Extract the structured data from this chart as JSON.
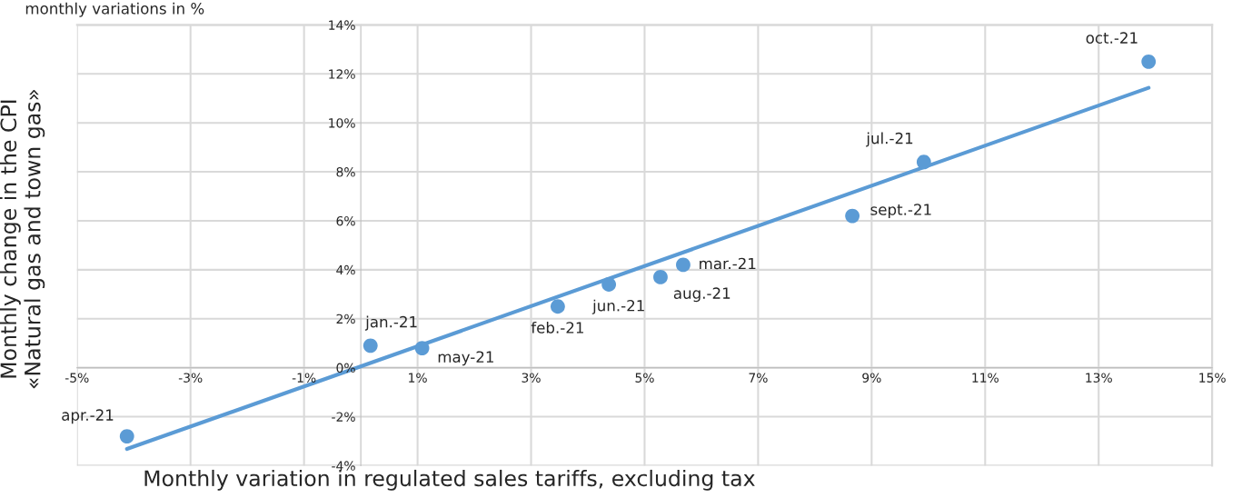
{
  "chart_data": {
    "type": "scatter",
    "subtitle": "monthly variations in %",
    "xlabel": "Monthly variation in regulated sales tariffs, excluding tax",
    "ylabel": "Monthly change in the CPI\n«Natural gas and town gas»",
    "series": [
      {
        "color": "#5b9bd5",
        "marker": "circle",
        "x": [
          0.17,
          3.47,
          5.68,
          -4.12,
          1.08,
          4.37,
          9.92,
          5.28,
          8.66,
          13.88
        ],
        "values": [
          0.9,
          2.5,
          4.2,
          -2.8,
          0.8,
          3.4,
          8.4,
          3.7,
          6.2,
          12.5
        ]
      },
      {
        "type": "line",
        "color": "#5b9bd5",
        "line_style": "solid",
        "x": [
          -4.12,
          13.88
        ],
        "values": [
          -3.32,
          11.43
        ]
      }
    ],
    "annotations": [
      {
        "text": "jan.-21",
        "x": 0.17,
        "y": 0.9
      },
      {
        "text": "feb.-21",
        "x": 3.47,
        "y": 2.5
      },
      {
        "text": "mar.-21",
        "x": 5.68,
        "y": 4.2
      },
      {
        "text": "apr.-21",
        "x": -4.12,
        "y": -2.8
      },
      {
        "text": "may-21",
        "x": 1.08,
        "y": 0.8
      },
      {
        "text": "jun.-21",
        "x": 4.37,
        "y": 3.4
      },
      {
        "text": "jul.-21",
        "x": 9.92,
        "y": 8.4
      },
      {
        "text": "aug.-21",
        "x": 5.28,
        "y": 3.7
      },
      {
        "text": "sept.-21",
        "x": 8.66,
        "y": 6.2
      },
      {
        "text": "oct.-21",
        "x": 13.88,
        "y": 12.5
      }
    ],
    "xlim": [
      -5,
      15
    ],
    "xticks": [
      {
        "value": -5,
        "label": "-5%"
      },
      {
        "value": -3,
        "label": "-3%"
      },
      {
        "value": -1,
        "label": "-1%"
      },
      {
        "value": 1,
        "label": "1%"
      },
      {
        "value": 3,
        "label": "3%"
      },
      {
        "value": 5,
        "label": "5%"
      },
      {
        "value": 7,
        "label": "7%"
      },
      {
        "value": 9,
        "label": "9%"
      },
      {
        "value": 11,
        "label": "11%"
      },
      {
        "value": 13,
        "label": "13%"
      },
      {
        "value": 15,
        "label": "15%"
      }
    ],
    "ylim": [
      -4,
      14
    ],
    "yticks": [
      {
        "value": -4,
        "label": "-4%"
      },
      {
        "value": -2,
        "label": "-2%"
      },
      {
        "value": 0,
        "label": "0%"
      },
      {
        "value": 2,
        "label": "2%"
      },
      {
        "value": 4,
        "label": "4%"
      },
      {
        "value": 6,
        "label": "6%"
      },
      {
        "value": 8,
        "label": "8%"
      },
      {
        "value": 10,
        "label": "10%"
      },
      {
        "value": 12,
        "label": "12%"
      },
      {
        "value": 14,
        "label": "14%"
      }
    ],
    "grid": true,
    "legend": false
  }
}
